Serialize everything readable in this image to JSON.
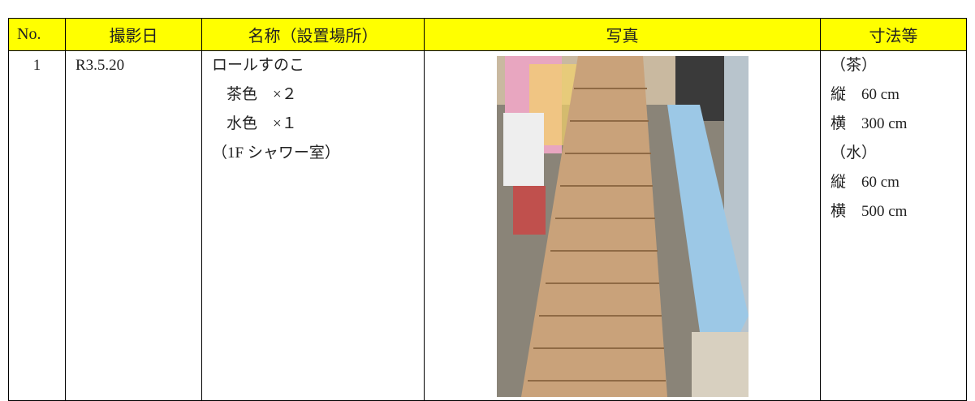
{
  "table": {
    "headers": [
      "No.",
      "撮影日",
      "名称（設置場所）",
      "写真",
      "寸法等"
    ],
    "rows": [
      {
        "no": "1",
        "date": "R3.5.20",
        "name": [
          "ロールすのこ",
          "茶色　×２",
          "水色　×１",
          "（1F シャワー室）"
        ],
        "size": [
          "（茶）",
          "縦　60 cm",
          "横　300 cm",
          "（水）",
          "縦　60 cm",
          "横　500 cm"
        ]
      }
    ]
  }
}
